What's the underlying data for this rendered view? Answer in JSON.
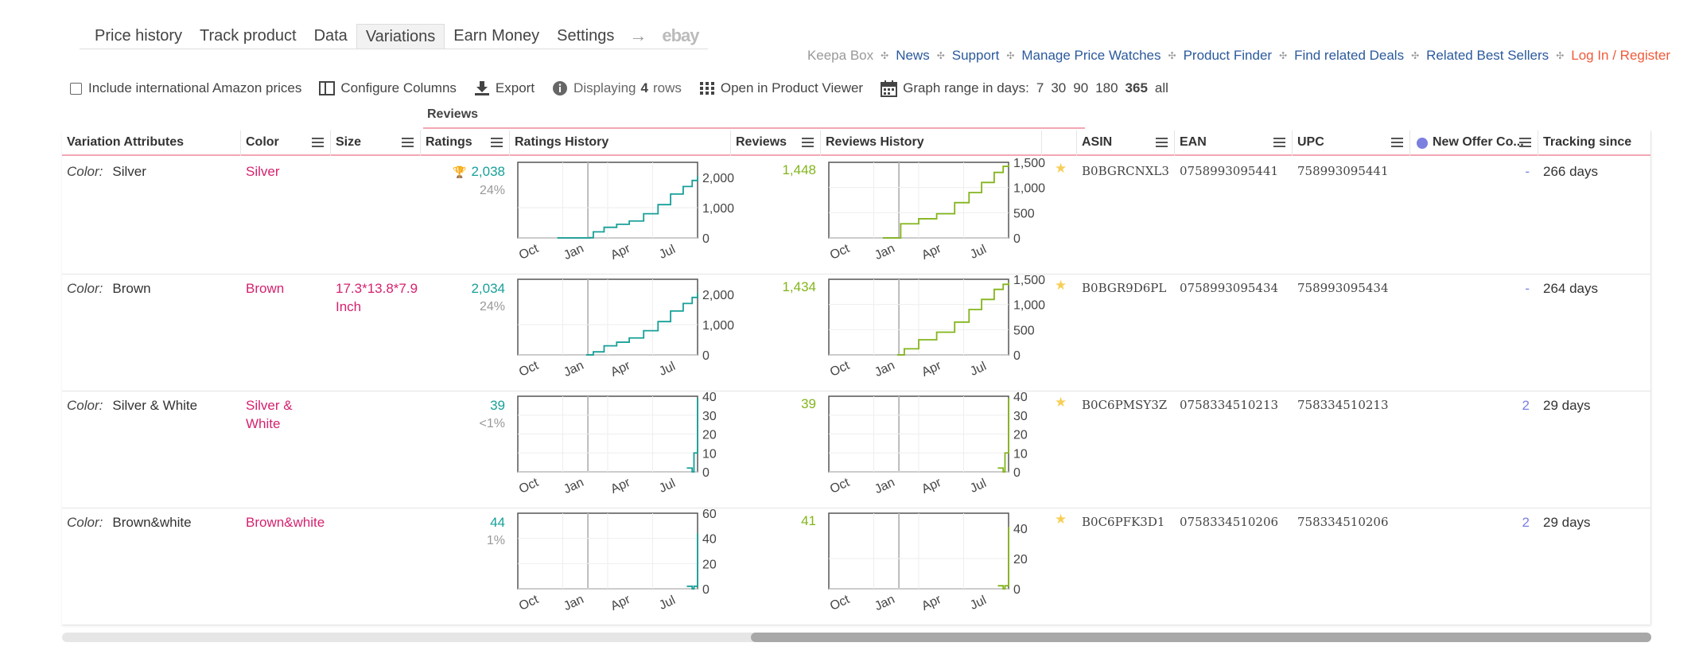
{
  "tabs": [
    "Price history",
    "Track product",
    "Data",
    "Variations",
    "Earn Money",
    "Settings"
  ],
  "tabs_arrow": "→",
  "tabs_ebay": "ebay",
  "toplinks": {
    "brand": "Keepa Box",
    "links": [
      "News",
      "Support",
      "Manage Price Watches",
      "Product Finder",
      "Find related Deals",
      "Related Best Sellers"
    ],
    "login": "Log In / Register"
  },
  "toolbar": {
    "intl_label": "Include international Amazon prices",
    "configure_label": "Configure Columns",
    "export_label": "Export",
    "displaying_pre": "Displaying",
    "displaying_count": "4",
    "displaying_post": "rows",
    "viewer_label": "Open in Product Viewer",
    "range_label": "Graph range in days:",
    "ranges": [
      "7",
      "30",
      "90",
      "180",
      "365",
      "all"
    ],
    "range_selected": "365"
  },
  "group_header": "Reviews",
  "columns": [
    "Variation Attributes",
    "Color",
    "Size",
    "Ratings",
    "Ratings History",
    "Reviews",
    "Reviews History",
    "ASIN",
    "EAN",
    "UPC",
    "New Offer Co...",
    "Tracking since"
  ],
  "month_labels": [
    "Oct",
    "Jan",
    "Apr",
    "Jul"
  ],
  "rows": [
    {
      "attr_key": "Color:",
      "attr_val": "Silver",
      "color": "Silver",
      "size": "",
      "ratings": "2,038",
      "ratings_pct": "24%",
      "trophy": true,
      "reviews": "1,448",
      "asin": "B0BGRCNXL3",
      "ean": "0758993095441",
      "upc": "758993095441",
      "new_offer": "-",
      "tracking": "266 days",
      "rating_ticks": [
        "2,000",
        "1,000",
        "0"
      ],
      "rating_max": 2500,
      "rating_series": [
        [
          0.22,
          0
        ],
        [
          0.3,
          0
        ],
        [
          0.4,
          10
        ],
        [
          0.42,
          200
        ],
        [
          0.48,
          350
        ],
        [
          0.55,
          450
        ],
        [
          0.62,
          560
        ],
        [
          0.7,
          800
        ],
        [
          0.78,
          1100
        ],
        [
          0.85,
          1450
        ],
        [
          0.92,
          1700
        ],
        [
          0.97,
          1900
        ],
        [
          1.0,
          2038
        ]
      ],
      "review_ticks": [
        "1,500",
        "1,000",
        "500",
        "0"
      ],
      "review_max": 1500,
      "review_series": [
        [
          0.3,
          0
        ],
        [
          0.34,
          0
        ],
        [
          0.4,
          280
        ],
        [
          0.5,
          380
        ],
        [
          0.6,
          480
        ],
        [
          0.7,
          700
        ],
        [
          0.78,
          900
        ],
        [
          0.85,
          1100
        ],
        [
          0.92,
          1300
        ],
        [
          0.97,
          1420
        ],
        [
          1.0,
          1448
        ]
      ]
    },
    {
      "attr_key": "Color:",
      "attr_val": "Brown",
      "color": "Brown",
      "size": "17.3*13.8*7.9 Inch",
      "ratings": "2,034",
      "ratings_pct": "24%",
      "trophy": false,
      "reviews": "1,434",
      "asin": "B0BGR9D6PL",
      "ean": "0758993095434",
      "upc": "758993095434",
      "new_offer": "-",
      "tracking": "264 days",
      "rating_ticks": [
        "2,000",
        "1,000",
        "0"
      ],
      "rating_max": 2500,
      "rating_series": [
        [
          0.38,
          0
        ],
        [
          0.42,
          100
        ],
        [
          0.48,
          300
        ],
        [
          0.55,
          420
        ],
        [
          0.62,
          560
        ],
        [
          0.7,
          800
        ],
        [
          0.78,
          1100
        ],
        [
          0.85,
          1450
        ],
        [
          0.92,
          1700
        ],
        [
          0.97,
          1900
        ],
        [
          1.0,
          2034
        ]
      ],
      "review_ticks": [
        "1,500",
        "1,000",
        "500",
        "0"
      ],
      "review_max": 1500,
      "review_series": [
        [
          0.38,
          0
        ],
        [
          0.42,
          120
        ],
        [
          0.5,
          300
        ],
        [
          0.6,
          450
        ],
        [
          0.7,
          650
        ],
        [
          0.78,
          900
        ],
        [
          0.85,
          1100
        ],
        [
          0.92,
          1300
        ],
        [
          0.97,
          1400
        ],
        [
          1.0,
          1434
        ]
      ]
    },
    {
      "attr_key": "Color:",
      "attr_val": "Silver & White",
      "color": "Silver & White",
      "size": "",
      "ratings": "39",
      "ratings_pct": "<1%",
      "trophy": false,
      "reviews": "39",
      "asin": "B0C6PMSY3Z",
      "ean": "0758334510213",
      "upc": "758334510213",
      "new_offer": "2",
      "tracking": "29 days",
      "rating_ticks": [
        "40",
        "30",
        "20",
        "10",
        "0"
      ],
      "rating_max": 40,
      "rating_series": [
        [
          0.94,
          2
        ],
        [
          0.97,
          0
        ],
        [
          0.98,
          10
        ],
        [
          1.0,
          14
        ],
        [
          1.0,
          39
        ]
      ],
      "review_ticks": [
        "40",
        "30",
        "20",
        "10",
        "0"
      ],
      "review_max": 40,
      "review_series": [
        [
          0.94,
          2
        ],
        [
          0.97,
          0
        ],
        [
          0.98,
          10
        ],
        [
          1.0,
          14
        ],
        [
          1.0,
          39
        ]
      ]
    },
    {
      "attr_key": "Color:",
      "attr_val": "Brown&white",
      "color": "Brown&white",
      "size": "",
      "ratings": "44",
      "ratings_pct": "1%",
      "trophy": false,
      "reviews": "41",
      "asin": "B0C6PFK3D1",
      "ean": "0758334510206",
      "upc": "758334510206",
      "new_offer": "2",
      "tracking": "29 days",
      "rating_ticks": [
        "60",
        "40",
        "20",
        "0"
      ],
      "rating_max": 60,
      "rating_series": [
        [
          0.94,
          2
        ],
        [
          0.97,
          0
        ],
        [
          0.98,
          2
        ],
        [
          1.0,
          22
        ],
        [
          1.0,
          44
        ]
      ],
      "review_ticks": [
        "40",
        "20",
        "0"
      ],
      "review_max": 50,
      "review_series": [
        [
          0.94,
          2
        ],
        [
          0.97,
          0
        ],
        [
          0.98,
          2
        ],
        [
          1.0,
          22
        ],
        [
          1.0,
          41
        ]
      ]
    }
  ],
  "colors": {
    "teal": "#17a098",
    "lime": "#83b51c",
    "pink": "#d4226f",
    "link": "#2b5a9c",
    "login": "#f05a3a"
  }
}
